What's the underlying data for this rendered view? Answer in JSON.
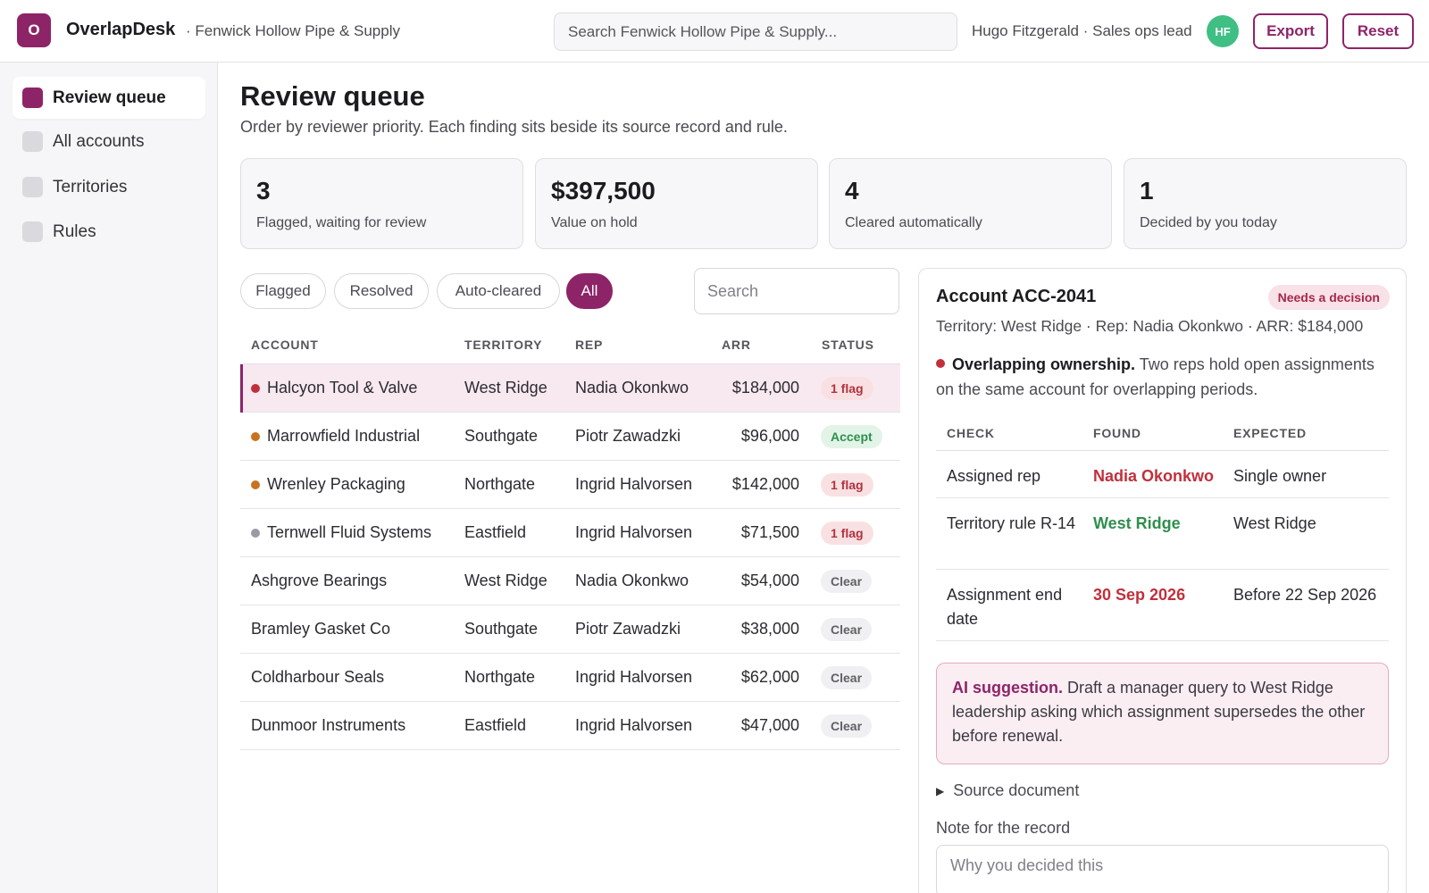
{
  "app": {
    "logo_letter": "O",
    "name": "OverlapDesk",
    "org": "· Fenwick Hollow Pipe & Supply",
    "search_placeholder": "Search Fenwick Hollow Pipe & Supply...",
    "user": "Hugo Fitzgerald · Sales ops lead",
    "avatar_initials": "HF",
    "export_label": "Export",
    "reset_label": "Reset"
  },
  "sidebar": {
    "items": [
      {
        "label": "Review queue",
        "active": true
      },
      {
        "label": "All accounts",
        "active": false
      },
      {
        "label": "Territories",
        "active": false
      },
      {
        "label": "Rules",
        "active": false
      }
    ]
  },
  "main": {
    "title": "Review queue",
    "subtitle": "Order by reviewer priority. Each finding sits beside its source record and rule.",
    "stats": [
      {
        "value": "3",
        "label": "Flagged, waiting for review"
      },
      {
        "value": "$397,500",
        "label": "Value on hold"
      },
      {
        "value": "4",
        "label": "Cleared automatically"
      },
      {
        "value": "1",
        "label": "Decided by you today"
      }
    ],
    "filters": [
      {
        "label": "Flagged",
        "active": false
      },
      {
        "label": "Resolved",
        "active": false
      },
      {
        "label": "Auto-cleared",
        "active": false
      },
      {
        "label": "All",
        "active": true
      }
    ],
    "table_search_placeholder": "Search"
  },
  "table": {
    "headers": {
      "account": "Account",
      "territory": "Territory",
      "rep": "Rep",
      "arr": "ARR",
      "status": "Status"
    },
    "rows": [
      {
        "account": "Halcyon Tool & Valve",
        "territory": "West Ridge",
        "rep": "Nadia Okonkwo",
        "arr": "$184,000",
        "status": "1 flag",
        "status_kind": "flag",
        "dot": "#c0303c",
        "selected": true
      },
      {
        "account": "Marrowfield Industrial",
        "territory": "Southgate",
        "rep": "Piotr Zawadzki",
        "arr": "$96,000",
        "status": "Accept",
        "status_kind": "accept",
        "dot": "#c8741f",
        "selected": false
      },
      {
        "account": "Wrenley Packaging",
        "territory": "Northgate",
        "rep": "Ingrid Halvorsen",
        "arr": "$142,000",
        "status": "1 flag",
        "status_kind": "flag",
        "dot": "#c8741f",
        "selected": false
      },
      {
        "account": "Ternwell Fluid Systems",
        "territory": "Eastfield",
        "rep": "Ingrid Halvorsen",
        "arr": "$71,500",
        "status": "1 flag",
        "status_kind": "flag",
        "dot": "#9a9aa4",
        "selected": false
      },
      {
        "account": "Ashgrove Bearings",
        "territory": "West Ridge",
        "rep": "Nadia Okonkwo",
        "arr": "$54,000",
        "status": "Clear",
        "status_kind": "clear",
        "dot": "",
        "selected": false
      },
      {
        "account": "Bramley Gasket Co",
        "territory": "Southgate",
        "rep": "Piotr Zawadzki",
        "arr": "$38,000",
        "status": "Clear",
        "status_kind": "clear",
        "dot": "",
        "selected": false
      },
      {
        "account": "Coldharbour Seals",
        "territory": "Northgate",
        "rep": "Ingrid Halvorsen",
        "arr": "$62,000",
        "status": "Clear",
        "status_kind": "clear",
        "dot": "",
        "selected": false
      },
      {
        "account": "Dunmoor Instruments",
        "territory": "Eastfield",
        "rep": "Ingrid Halvorsen",
        "arr": "$47,000",
        "status": "Clear",
        "status_kind": "clear",
        "dot": "",
        "selected": false
      }
    ]
  },
  "detail": {
    "title": "Account ACC-2041",
    "badge": "Needs a decision",
    "meta": "Territory: West Ridge · Rep: Nadia Okonkwo · ARR: $184,000",
    "finding_title": "Overlapping ownership.",
    "finding_text": "Two reps hold open assignments on the same account for overlapping periods.",
    "checks_headers": {
      "check": "Check",
      "found": "Found",
      "expected": "Expected"
    },
    "checks": [
      {
        "check": "Assigned rep",
        "found": "Nadia Okonkwo",
        "found_kind": "bad",
        "expected": "Single owner"
      },
      {
        "check": "Territory rule R-14",
        "found": "West Ridge",
        "found_kind": "good",
        "expected": "West Ridge"
      },
      {
        "check": "Assignment end date",
        "found": "30 Sep 2026",
        "found_kind": "bad",
        "expected": "Before 22 Sep 2026"
      }
    ],
    "ai_label": "AI suggestion.",
    "ai_text": "Draft a manager query to West Ridge leadership asking which assignment supersedes the other before renewal.",
    "source_doc_label": "Source document",
    "note_label": "Note for the record",
    "note_placeholder": "Why you decided this"
  },
  "colors": {
    "brand": "#8e2468",
    "flag_red": "#c0303c",
    "ok_green": "#2f8f4e",
    "avatar_green": "#3fbf84"
  }
}
